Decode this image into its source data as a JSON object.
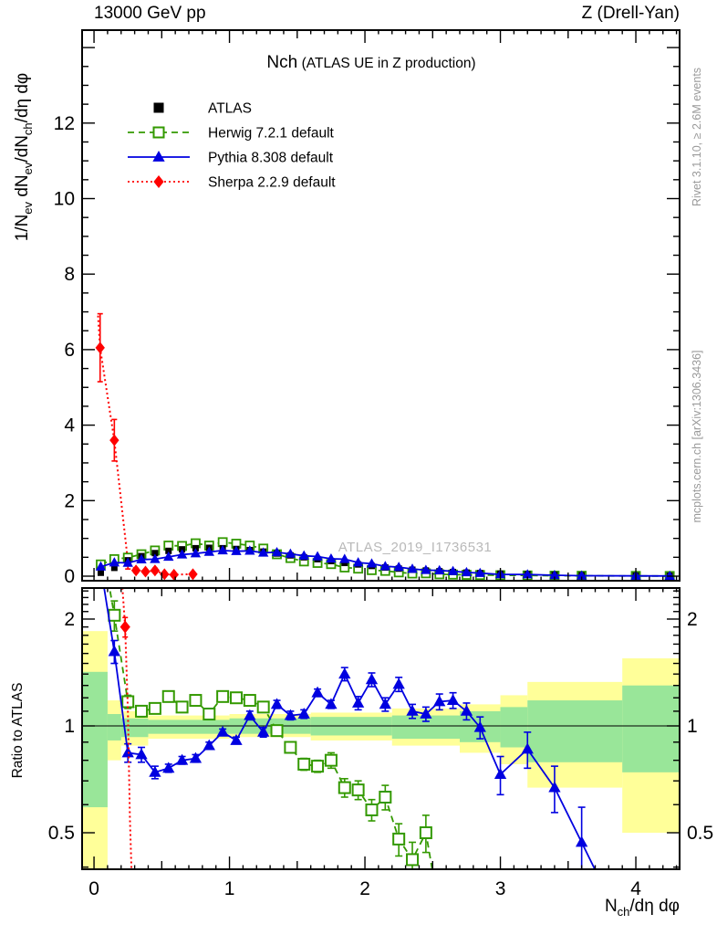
{
  "header": {
    "left": "13000 GeV pp",
    "right": "Z (Drell-Yan)"
  },
  "title": {
    "main": "Nch",
    "sub": "(ATLAS UE in Z production)"
  },
  "watermark": "ATLAS_2019_I1736531",
  "side_notes": {
    "top": "Rivet 3.1.10, ≥ 2.6M events",
    "bottom": "mcplots.cern.ch [arXiv:1306.3436]"
  },
  "axes": {
    "ylabel_parts": [
      {
        "t": "1/N"
      },
      {
        "t": "ev",
        "s": 1
      },
      {
        "t": " dN"
      },
      {
        "t": "ev",
        "s": 1
      },
      {
        "t": "/dN"
      },
      {
        "t": "ch",
        "s": 1
      },
      {
        "t": "/dη dφ"
      }
    ],
    "xlabel_parts": [
      {
        "t": "N"
      },
      {
        "t": "ch",
        "s": 1
      },
      {
        "t": "/dη dφ"
      }
    ],
    "ratio_label": "Ratio to ATLAS",
    "main_y_ticks": [
      0,
      2,
      4,
      6,
      8,
      10,
      12
    ],
    "x_ticks": [
      0,
      1,
      2,
      3,
      4
    ],
    "ratio_ticks": [
      {
        "v": 2,
        "label": "2"
      },
      {
        "v": 1,
        "label": "1"
      },
      {
        "v": 0.5,
        "label": "0.5"
      }
    ]
  },
  "legend": [
    {
      "label": "ATLAS",
      "marker": "square-filled",
      "color": "#000000",
      "line": "none"
    },
    {
      "label": "Herwig 7.2.1 default",
      "marker": "square-open",
      "color": "#339900",
      "line": "dashed"
    },
    {
      "label": "Pythia 8.308 default",
      "marker": "triangle-filled",
      "color": "#0000e0",
      "line": "solid"
    },
    {
      "label": "Sherpa 2.2.9 default",
      "marker": "diamond-filled",
      "color": "#ff0000",
      "line": "dotted"
    }
  ],
  "colors": {
    "atlas": "#000000",
    "herwig": "#339900",
    "pythia": "#0000e0",
    "sherpa": "#ff0000",
    "band_total": "#ffff99",
    "band_stat": "#99e699",
    "frame": "#000000",
    "gray_notes": "#9a9a9a",
    "watermark": "#b9b9b9"
  },
  "chart_data": {
    "type": "line",
    "title": "Nch (ATLAS UE in Z production)",
    "xlabel": "Nch/deta dphi",
    "ylabel_main": "1/Nev dNev/dNch/deta dphi",
    "ylabel_ratio": "Ratio to ATLAS",
    "x_range": [
      -0.088,
      4.323
    ],
    "y_range_main": [
      -0.12,
      14.45
    ],
    "y_range_ratio": [
      0.39,
      2.45
    ],
    "ratio_scale": "log",
    "grid": false,
    "legend_position": "top-left",
    "x": [
      0.05,
      0.15,
      0.25,
      0.35,
      0.45,
      0.55,
      0.65,
      0.75,
      0.85,
      0.95,
      1.05,
      1.15,
      1.25,
      1.35,
      1.45,
      1.55,
      1.65,
      1.75,
      1.85,
      1.95,
      2.05,
      2.15,
      2.25,
      2.35,
      2.45,
      2.55,
      2.65,
      2.75,
      2.85,
      3.0,
      3.2,
      3.4,
      3.6,
      4.0,
      4.25
    ],
    "series": [
      {
        "name": "ATLAS",
        "y_main": [
          0.09,
          0.22,
          0.42,
          0.53,
          0.61,
          0.67,
          0.71,
          0.74,
          0.75,
          0.74,
          0.72,
          0.69,
          0.65,
          0.6,
          0.55,
          0.5,
          0.45,
          0.4,
          0.35,
          0.31,
          0.27,
          0.23,
          0.2,
          0.17,
          0.15,
          0.13,
          0.11,
          0.095,
          0.08,
          0.065,
          0.05,
          0.035,
          0.025,
          0.015,
          0.01
        ]
      },
      {
        "name": "Herwig 7.2.1 default",
        "y_main": [
          0.31,
          0.45,
          0.49,
          0.58,
          0.68,
          0.81,
          0.8,
          0.87,
          0.81,
          0.9,
          0.86,
          0.81,
          0.73,
          0.58,
          0.48,
          0.39,
          0.35,
          0.32,
          0.23,
          0.2,
          0.16,
          0.14,
          0.1,
          0.07,
          0.075,
          0.05,
          0.042,
          0.036,
          0.03,
          0.025,
          0.019,
          0.013,
          0.01,
          0.006,
          0.004
        ],
        "y_ratio": [
          3.4,
          2.05,
          1.17,
          1.1,
          1.12,
          1.21,
          1.13,
          1.18,
          1.08,
          1.21,
          1.2,
          1.18,
          1.13,
          0.97,
          0.87,
          0.78,
          0.77,
          0.8,
          0.67,
          0.66,
          0.58,
          0.63,
          0.48,
          0.42,
          0.5,
          null,
          null,
          null,
          null,
          null,
          null,
          null,
          null,
          null,
          null
        ],
        "ratio_err": [
          0,
          0.2,
          0.05,
          0.04,
          0.03,
          0.03,
          0.03,
          0.03,
          0.03,
          0.03,
          0.03,
          0.03,
          0.03,
          0.03,
          0.03,
          0.03,
          0.03,
          0.04,
          0.04,
          0.04,
          0.04,
          0.05,
          0.05,
          0.05,
          0.06,
          0,
          0,
          0,
          0,
          0,
          0,
          0,
          0,
          0,
          0
        ],
        "ratio_tail": [
          2.55,
          0.3
        ]
      },
      {
        "name": "Pythia 8.308 default",
        "y_main": [
          0.25,
          0.36,
          0.35,
          0.44,
          0.45,
          0.51,
          0.57,
          0.6,
          0.64,
          0.68,
          0.66,
          0.67,
          0.62,
          0.63,
          0.59,
          0.54,
          0.52,
          0.46,
          0.45,
          0.36,
          0.33,
          0.26,
          0.24,
          0.19,
          0.16,
          0.15,
          0.13,
          0.1,
          0.079,
          0.047,
          0.043,
          0.023,
          0.012,
          0.007,
          0.004
        ],
        "y_ratio": [
          2.8,
          1.62,
          0.84,
          0.83,
          0.74,
          0.76,
          0.8,
          0.81,
          0.88,
          0.96,
          0.91,
          1.07,
          0.96,
          1.15,
          1.07,
          1.08,
          1.24,
          1.15,
          1.4,
          1.16,
          1.35,
          1.15,
          1.31,
          1.1,
          1.08,
          1.17,
          1.18,
          1.1,
          0.99,
          0.73,
          0.86,
          0.67,
          0.47,
          null,
          null
        ],
        "ratio_err": [
          0,
          0.12,
          0.05,
          0.04,
          0.03,
          0.02,
          0.02,
          0.02,
          0.02,
          0.02,
          0.02,
          0.03,
          0.03,
          0.03,
          0.03,
          0.03,
          0.03,
          0.03,
          0.06,
          0.05,
          0.06,
          0.05,
          0.06,
          0.05,
          0.05,
          0.06,
          0.06,
          0.06,
          0.07,
          0.09,
          0.1,
          0.1,
          0.12,
          0,
          0
        ],
        "ratio_tail": [
          3.85,
          0.3
        ]
      },
      {
        "name": "Sherpa 2.2.9 default",
        "x_pts": [
          0.045,
          0.15,
          0.25,
          0.31,
          0.38,
          0.45,
          0.52,
          0.59,
          0.73
        ],
        "y_pts": [
          6.05,
          3.6,
          0.39,
          0.15,
          0.12,
          0.15,
          0.05,
          0.04,
          0.05
        ],
        "err_pts": [
          0.9,
          0.55,
          0.2,
          0.06,
          0.05,
          0.06,
          0.03,
          0.02,
          0.02
        ],
        "line_top": [
          0.03,
          6.9
        ],
        "ratio_pts": [
          [
            0.23,
            1.9
          ]
        ],
        "ratio_line": [
          [
            0.205,
            2.6
          ],
          [
            0.23,
            1.9
          ],
          [
            0.25,
            1.1
          ],
          [
            0.265,
            0.55
          ],
          [
            0.28,
            0.36
          ]
        ]
      }
    ],
    "ratio_bands": {
      "total": [
        [
          -0.088,
          0.1,
          0.36,
          1.85
        ],
        [
          0.1,
          0.2,
          0.8,
          1.18
        ],
        [
          0.2,
          0.4,
          0.88,
          1.1
        ],
        [
          0.4,
          1.0,
          0.92,
          1.07
        ],
        [
          1.0,
          1.6,
          0.93,
          1.08
        ],
        [
          1.6,
          2.2,
          0.91,
          1.09
        ],
        [
          2.2,
          2.7,
          0.88,
          1.12
        ],
        [
          2.7,
          3.0,
          0.84,
          1.15
        ],
        [
          3.0,
          3.2,
          0.78,
          1.22
        ],
        [
          3.2,
          3.9,
          0.67,
          1.33
        ],
        [
          3.9,
          4.323,
          0.5,
          1.55
        ]
      ],
      "stat": [
        [
          -0.088,
          0.1,
          0.59,
          1.42
        ],
        [
          0.1,
          0.2,
          0.91,
          1.08
        ],
        [
          0.2,
          0.4,
          0.93,
          1.05
        ],
        [
          0.4,
          1.0,
          0.95,
          1.04
        ],
        [
          1.0,
          1.6,
          0.95,
          1.05
        ],
        [
          1.6,
          2.2,
          0.94,
          1.06
        ],
        [
          2.2,
          2.7,
          0.92,
          1.07
        ],
        [
          2.7,
          3.0,
          0.9,
          1.1
        ],
        [
          3.0,
          3.2,
          0.87,
          1.13
        ],
        [
          3.2,
          3.9,
          0.79,
          1.18
        ],
        [
          3.9,
          4.323,
          0.74,
          1.3
        ]
      ]
    }
  }
}
